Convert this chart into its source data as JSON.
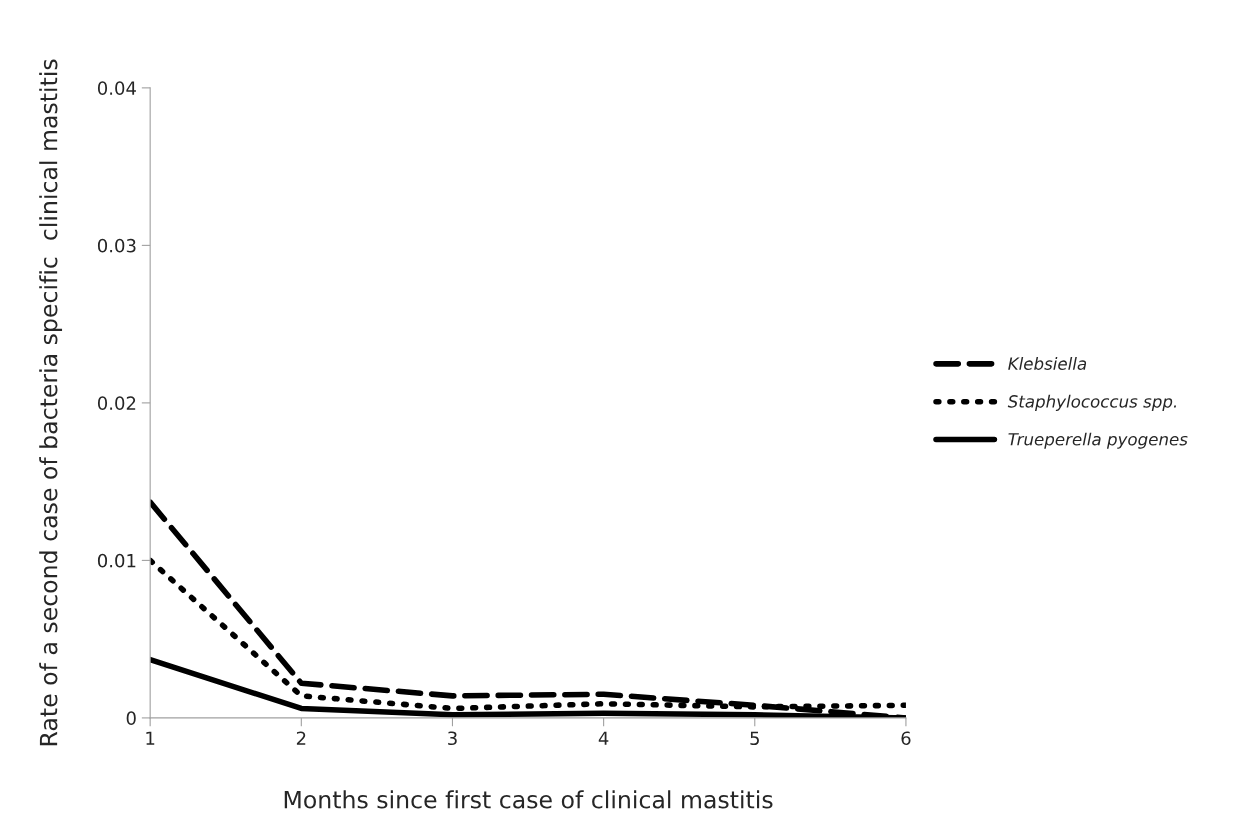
{
  "chart_data": {
    "type": "line",
    "xlabel": "Months since first case of clinical mastitis",
    "ylabel": "Rate of a second case of bacteria specific  clinical mastitis",
    "x": [
      1,
      2,
      3,
      4,
      5,
      6
    ],
    "series": [
      {
        "name": "Klebsiella",
        "color": "#000000",
        "line_style": "dashed",
        "values": [
          0.0137,
          0.0022,
          0.0014,
          0.0015,
          0.0008,
          0.0
        ]
      },
      {
        "name": "Staphylococcus spp.",
        "color": "#000000",
        "line_style": "dotted",
        "values": [
          0.01,
          0.0014,
          0.0006,
          0.0009,
          0.0007,
          0.0008
        ]
      },
      {
        "name": "Trueperella pyogenes",
        "color": "#000000",
        "line_style": "solid",
        "values": [
          0.0037,
          0.0006,
          0.0002,
          0.0003,
          0.0002,
          0.0
        ]
      }
    ],
    "xlim": [
      1,
      6
    ],
    "xticks": [
      1,
      2,
      3,
      4,
      5,
      6
    ],
    "ylim": [
      0,
      0.04
    ],
    "yticks": [
      0,
      0.01,
      0.02,
      0.03,
      0.04
    ],
    "grid": false,
    "legend": "right",
    "marker": "none"
  }
}
